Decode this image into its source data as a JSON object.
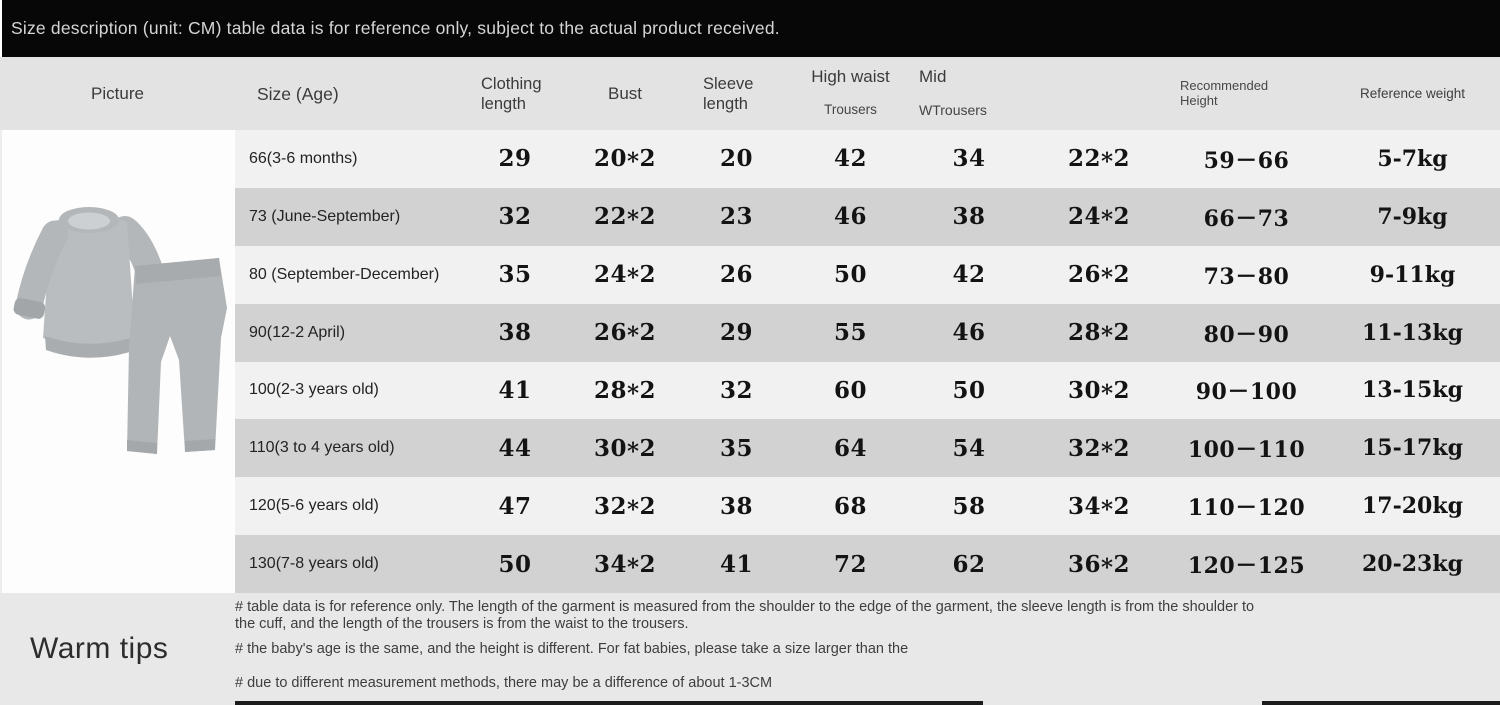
{
  "top_bar": {
    "text": "Size description (unit: CM) table data is for reference only, subject to the actual product received."
  },
  "table": {
    "headers": [
      {
        "line1": "Picture",
        "line2": ""
      },
      {
        "line1": "Size (Age)",
        "line2": ""
      },
      {
        "line1": "Clothing",
        "line2": "length"
      },
      {
        "line1": "Bust",
        "line2": ""
      },
      {
        "line1": "Sleeve",
        "line2": "length"
      },
      {
        "line1": "High waist",
        "line2": "Trousers"
      },
      {
        "line1": "Mid",
        "line2": "WTrousers"
      },
      {
        "line1": "",
        "line2": ""
      },
      {
        "line1": "Recommended",
        "line2": "Height"
      },
      {
        "line1": "Reference weight",
        "line2": ""
      }
    ],
    "rows": [
      {
        "size": "66(3-6 months)",
        "values": [
          "29",
          "20*2",
          "20",
          "42",
          "34",
          "22*2",
          "59－66",
          "5-7kg"
        ]
      },
      {
        "size": "73 (June-September)",
        "values": [
          "32",
          "22*2",
          "23",
          "46",
          "38",
          "24*2",
          "66－73",
          "7-9kg"
        ]
      },
      {
        "size": "80 (September-December)",
        "values": [
          "35",
          "24*2",
          "26",
          "50",
          "42",
          "26*2",
          "73－80",
          "9-11kg"
        ]
      },
      {
        "size": "90(12-2 April)",
        "values": [
          "38",
          "26*2",
          "29",
          "55",
          "46",
          "28*2",
          "80－90",
          "11-13kg"
        ]
      },
      {
        "size": "100(2-3 years old)",
        "values": [
          "41",
          "28*2",
          "32",
          "60",
          "50",
          "30*2",
          "90－100",
          "13-15kg"
        ]
      },
      {
        "size": "110(3 to 4 years old)",
        "values": [
          "44",
          "30*2",
          "35",
          "64",
          "54",
          "32*2",
          "100－110",
          "15-17kg"
        ]
      },
      {
        "size": "120(5-6 years old)",
        "values": [
          "47",
          "32*2",
          "38",
          "68",
          "58",
          "34*2",
          "110－120",
          "17-20kg"
        ]
      },
      {
        "size": "130(7-8 years old)",
        "values": [
          "50",
          "34*2",
          "41",
          "72",
          "62",
          "36*2",
          "120－125",
          "20-23kg"
        ]
      }
    ]
  },
  "product_image": {
    "description": "grey baby sweatshirt and trousers set"
  },
  "warm_tips": {
    "title": "Warm tips",
    "notes": [
      "# table data is for reference only. The length of the garment is measured from the shoulder to the edge of the garment, the sleeve length is from the shoulder to the cuff, and the length of the trousers is from the waist to the trousers.",
      "# the baby's age is the same, and the height is different. For fat babies, please take a size larger than the",
      "# due to different measurement methods, there may be a difference of about 1-3CM"
    ]
  },
  "colors": {
    "top_bar_bg": "#070707",
    "header_bg": "#e3e3e3",
    "row_light": "#f1f1f1",
    "row_dark": "#d2d2d2",
    "bottom_bg": "#e8e8e8",
    "garment_grey": "#b7babc"
  }
}
